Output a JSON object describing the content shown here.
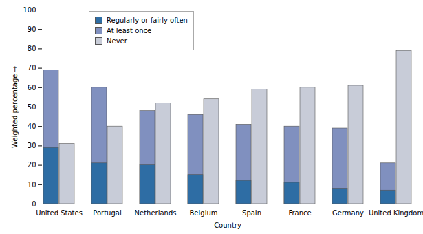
{
  "chart_data": {
    "type": "bar",
    "categories": [
      "United States",
      "Portugal",
      "Netherlands",
      "Belgium",
      "Spain",
      "France",
      "Germany",
      "United Kingdom"
    ],
    "series": [
      {
        "name": "Regularly or fairly often",
        "color": "#2e6da4",
        "values": [
          29,
          21,
          20,
          15,
          12,
          11,
          8,
          7
        ]
      },
      {
        "name": "At least once",
        "color": "#8090bf",
        "values": [
          69,
          60,
          48,
          46,
          41,
          40,
          39,
          21
        ]
      },
      {
        "name": "Never",
        "color": "#c8ccd8",
        "values": [
          31,
          40,
          52,
          54,
          59,
          60,
          61,
          79
        ]
      }
    ],
    "xlabel": "Country",
    "ylabel": "Weighted percentage",
    "ylim": [
      0,
      100
    ],
    "yticks": [
      0,
      10,
      20,
      30,
      40,
      50,
      60,
      70,
      80,
      90,
      100
    ],
    "grid": false,
    "legend": "upper left"
  }
}
